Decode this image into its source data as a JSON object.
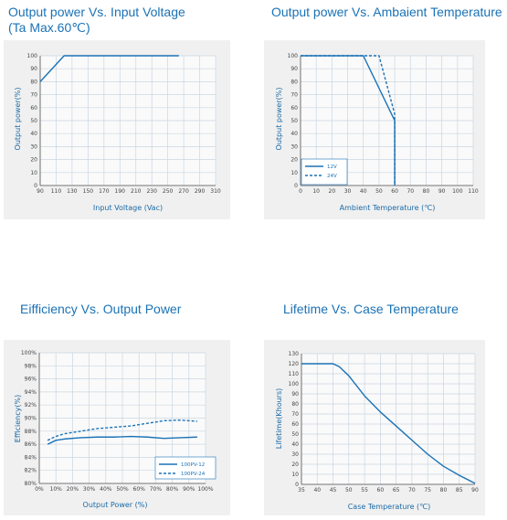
{
  "colors": {
    "series": "#1a72b6",
    "title": "#1a72b6",
    "panel": "#f0f0f0"
  },
  "chart_data": [
    {
      "type": "line",
      "title": "Output power Vs. Input Voltage\n(Ta Max.60℃)",
      "xlabel": "Input Voltage (Vac)",
      "ylabel": "Output power(%)",
      "xlim": [
        90,
        310
      ],
      "ylim": [
        0,
        100
      ],
      "xticks": [
        90,
        110,
        130,
        150,
        170,
        190,
        210,
        230,
        250,
        270,
        290,
        310
      ],
      "yticks": [
        0,
        10,
        20,
        30,
        40,
        50,
        60,
        70,
        80,
        90,
        100
      ],
      "tick_suffix": "",
      "grid": true,
      "series": [
        {
          "x": [
            90,
            120,
            264
          ],
          "y": [
            80,
            100,
            100
          ],
          "dash": false
        }
      ]
    },
    {
      "type": "line",
      "title": "Output power Vs. Ambaient Temperature",
      "xlabel": "Ambient Temperature (℃)",
      "ylabel": "Output power(%)",
      "xlim": [
        0,
        110
      ],
      "ylim": [
        0,
        100
      ],
      "xticks": [
        0,
        10,
        20,
        30,
        40,
        50,
        60,
        70,
        80,
        90,
        100,
        110
      ],
      "yticks": [
        0,
        10,
        20,
        30,
        40,
        50,
        60,
        70,
        80,
        90,
        100
      ],
      "tick_suffix": "",
      "grid": true,
      "legend": "bottom-left",
      "series": [
        {
          "name": "12V",
          "x": [
            0,
            40,
            60,
            60
          ],
          "y": [
            100,
            100,
            50,
            0
          ],
          "dash": false
        },
        {
          "name": "24V",
          "x": [
            0,
            50,
            60,
            60
          ],
          "y": [
            100,
            100,
            55,
            0
          ],
          "dash": true
        }
      ]
    },
    {
      "type": "line",
      "title": "Eifficiency Vs. Output Power",
      "xlabel": "Output Power (%)",
      "ylabel": "Efficiency(%)",
      "xlim": [
        0,
        100
      ],
      "ylim": [
        80,
        100
      ],
      "xticks": [
        0,
        10,
        20,
        30,
        40,
        50,
        60,
        70,
        80,
        90,
        100
      ],
      "yticks": [
        80,
        82,
        84,
        86,
        88,
        90,
        92,
        94,
        96,
        98,
        100
      ],
      "tick_suffix": "%",
      "grid": true,
      "legend": "bottom-right",
      "series": [
        {
          "name": "100PV-12",
          "x": [
            5,
            10,
            15,
            25,
            35,
            45,
            55,
            65,
            75,
            85,
            95
          ],
          "y": [
            86.0,
            86.6,
            86.8,
            87.0,
            87.1,
            87.1,
            87.2,
            87.1,
            86.9,
            87.0,
            87.1
          ],
          "dash": false
        },
        {
          "name": "100PV-24",
          "x": [
            5,
            10,
            15,
            25,
            35,
            45,
            55,
            65,
            75,
            85,
            95
          ],
          "y": [
            86.6,
            87.2,
            87.6,
            88.0,
            88.4,
            88.6,
            88.8,
            89.2,
            89.6,
            89.7,
            89.5
          ],
          "dash": true
        }
      ]
    },
    {
      "type": "line",
      "title": "Lifetime Vs. Case Temperature",
      "xlabel": "Case Temperature (℃)",
      "ylabel": "Lifetime(Khours)",
      "xlim": [
        35,
        90
      ],
      "ylim": [
        0,
        130
      ],
      "xticks": [
        35,
        40,
        45,
        50,
        55,
        60,
        65,
        70,
        75,
        80,
        85,
        90
      ],
      "yticks": [
        0,
        10,
        20,
        30,
        40,
        50,
        60,
        70,
        80,
        90,
        100,
        110,
        120,
        130
      ],
      "tick_suffix": "",
      "grid": true,
      "series": [
        {
          "x": [
            35,
            45,
            47,
            50,
            55,
            60,
            65,
            70,
            75,
            80,
            85,
            90
          ],
          "y": [
            120,
            120,
            117,
            108,
            88,
            72,
            58,
            44,
            30,
            18,
            9,
            1
          ],
          "dash": false
        }
      ]
    }
  ]
}
